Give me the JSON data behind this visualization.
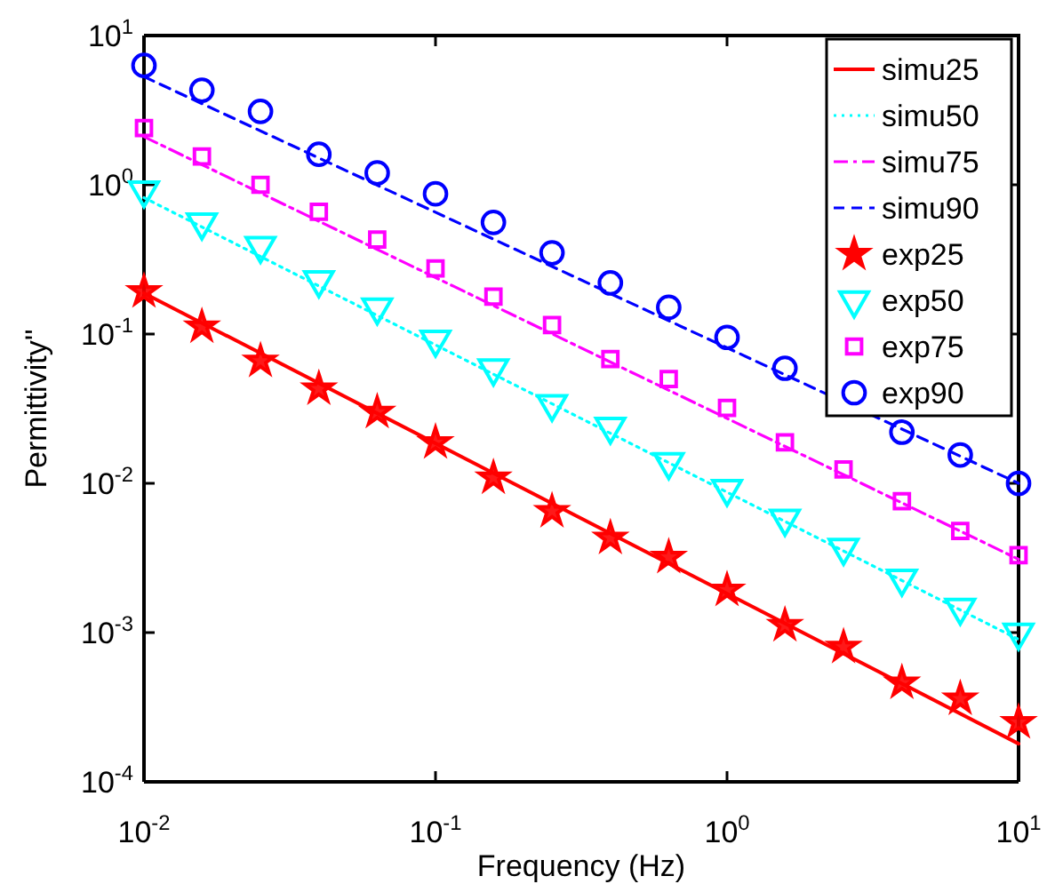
{
  "chart_data": {
    "type": "line",
    "xlabel": "Frequency (Hz)",
    "ylabel": "Permittivity''",
    "log": "xy",
    "xlim": [
      0.01,
      10
    ],
    "ylim": [
      0.0001,
      10
    ],
    "xticks": [
      {
        "value": 0.01,
        "label": "10$^{-2}$"
      },
      {
        "value": 0.1,
        "label": "10$^{-1}$"
      },
      {
        "value": 1,
        "label": "10$^{0}$"
      },
      {
        "value": 10,
        "label": "10$^{1}$"
      }
    ],
    "yticks": [
      {
        "value": 0.0001,
        "label": "10$^{-4}$"
      },
      {
        "value": 0.001,
        "label": "10$^{-3}$"
      },
      {
        "value": 0.01,
        "label": "10$^{-2}$"
      },
      {
        "value": 0.1,
        "label": "10$^{-1}$"
      },
      {
        "value": 1,
        "label": "10$^{0}$"
      },
      {
        "value": 10,
        "label": "10$^{1}$"
      }
    ],
    "legend": "top right",
    "series": [
      {
        "name": "simu25",
        "color": "#ff0000",
        "line_style": "solid",
        "marker": "none",
        "x": [
          0.01,
          10
        ],
        "values": [
          0.188,
          0.00018
        ]
      },
      {
        "name": "simu50",
        "color": "#00ffff",
        "line_style": "dotted",
        "marker": "none",
        "x": [
          0.01,
          10
        ],
        "values": [
          0.82,
          0.0009
        ]
      },
      {
        "name": "simu75",
        "color": "#ff00ff",
        "line_style": "dashdot",
        "marker": "none",
        "x": [
          0.01,
          10
        ],
        "values": [
          2.1,
          0.0031
        ]
      },
      {
        "name": "simu90",
        "color": "#0000ff",
        "line_style": "dashed",
        "marker": "none",
        "x": [
          0.01,
          10
        ],
        "values": [
          5.3,
          0.01
        ]
      },
      {
        "name": "exp25",
        "type": "scatter",
        "color": "#ff0000",
        "marker": "star",
        "x": [
          0.01,
          0.0158,
          0.0251,
          0.0398,
          0.0631,
          0.1,
          0.158,
          0.251,
          0.398,
          0.631,
          1,
          1.58,
          2.51,
          3.98,
          6.31,
          10
        ],
        "values": [
          0.193,
          0.112,
          0.066,
          0.043,
          0.03,
          0.0188,
          0.0109,
          0.0065,
          0.0043,
          0.0032,
          0.00193,
          0.00112,
          0.0008,
          0.00046,
          0.00036,
          0.00025
        ]
      },
      {
        "name": "exp50",
        "type": "scatter",
        "color": "#00ffff",
        "marker": "triangle-down",
        "x": [
          0.01,
          0.0158,
          0.0251,
          0.0398,
          0.0631,
          0.1,
          0.158,
          0.251,
          0.398,
          0.631,
          1,
          1.58,
          2.51,
          3.98,
          6.31,
          10
        ],
        "values": [
          0.92,
          0.56,
          0.39,
          0.23,
          0.151,
          0.092,
          0.059,
          0.034,
          0.024,
          0.0139,
          0.0092,
          0.0058,
          0.0037,
          0.0023,
          0.00147,
          0.001
        ]
      },
      {
        "name": "exp75",
        "type": "scatter",
        "color": "#ff00ff",
        "marker": "square",
        "x": [
          0.01,
          0.0158,
          0.0251,
          0.0398,
          0.0631,
          0.1,
          0.158,
          0.251,
          0.398,
          0.631,
          1,
          1.58,
          2.51,
          3.98,
          6.31,
          10
        ],
        "values": [
          2.4,
          1.55,
          1.0,
          0.66,
          0.43,
          0.275,
          0.178,
          0.115,
          0.068,
          0.05,
          0.032,
          0.0188,
          0.0124,
          0.0076,
          0.0048,
          0.0033
        ]
      },
      {
        "name": "exp90",
        "type": "scatter",
        "color": "#0000ff",
        "marker": "circle",
        "x": [
          0.01,
          0.0158,
          0.0251,
          0.0398,
          0.0631,
          0.1,
          0.158,
          0.251,
          0.398,
          0.631,
          1,
          1.58,
          2.51,
          3.98,
          6.31,
          10
        ],
        "values": [
          6.3,
          4.3,
          3.1,
          1.6,
          1.2,
          0.87,
          0.56,
          0.35,
          0.22,
          0.151,
          0.095,
          0.059,
          null,
          0.022,
          0.0155,
          0.01
        ]
      }
    ]
  }
}
